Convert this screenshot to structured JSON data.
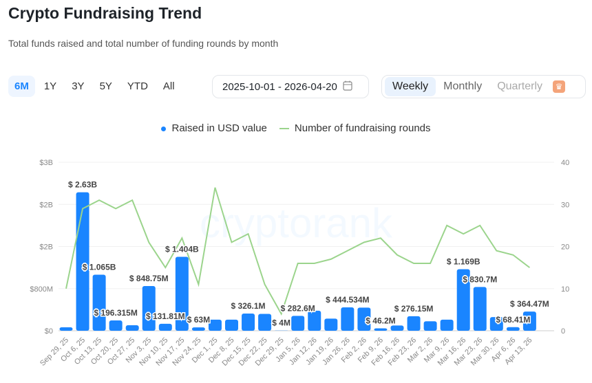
{
  "header": {
    "title": "Crypto Fundraising Trend",
    "subtitle": "Total funds raised and total number of funding rounds by month"
  },
  "ranges": [
    "6M",
    "1Y",
    "3Y",
    "5Y",
    "YTD",
    "All"
  ],
  "active_range": "6M",
  "date_range": "2025-10-01 - 2026-04-20",
  "periods": [
    "Weekly",
    "Monthly",
    "Quarterly"
  ],
  "active_period": "Weekly",
  "watermark": "cryptorank",
  "colors": {
    "bar": "#1a85ff",
    "line": "#9bd48c",
    "accent": "#1a85ff"
  },
  "chart_data": {
    "type": "bar+line",
    "legend": [
      "Raised in USD value",
      "Number of fundraising rounds"
    ],
    "legend_position": "top",
    "categories": [
      "Sep 29, 25",
      "Oct 6, 25",
      "Oct 13, 25",
      "Oct 20, 25",
      "Oct 27, 25",
      "Nov 3, 25",
      "Nov 10, 25",
      "Nov 17, 25",
      "Nov 24, 25",
      "Dec 1, 25",
      "Dec 8, 25",
      "Dec 15, 25",
      "Dec 22, 25",
      "Dec 29, 25",
      "Jan 5, 26",
      "Jan 12, 26",
      "Jan 19, 26",
      "Jan 26, 26",
      "Feb 2, 26",
      "Feb 9, 26",
      "Feb 16, 26",
      "Feb 23, 26",
      "Mar 2, 26",
      "Mar 9, 26",
      "Mar 16, 26",
      "Mar 23, 26",
      "Mar 30, 26",
      "Apr 6, 26",
      "Apr 13, 26"
    ],
    "series": [
      {
        "name": "Raised in USD value",
        "axis": "left",
        "type": "bar",
        "values": [
          65000000,
          2630000000,
          1065000000,
          196315000,
          105000000,
          848750000,
          131810000,
          1404000000,
          63000000,
          210000000,
          210000000,
          326100000,
          320000000,
          4000000,
          282600000,
          380000000,
          230000000,
          444534000,
          440000000,
          46200000,
          100000000,
          276150000,
          180000000,
          210000000,
          1169000000,
          830700000,
          260000000,
          68410000,
          364470000
        ],
        "labels": [
          null,
          "$ 2.63B",
          "$ 1.065B",
          "$ 196.315M",
          null,
          "$ 848.75M",
          "$ 131.81M",
          "$ 1.404B",
          "$ 63M",
          null,
          null,
          "$ 326.1M",
          null,
          "$ 4M",
          "$ 282.6M",
          null,
          null,
          "$ 444.534M",
          null,
          "$ 46.2M",
          null,
          "$ 276.15M",
          null,
          null,
          "$ 1.169B",
          "$ 830.7M",
          null,
          "$ 68.41M",
          "$ 364.47M"
        ]
      },
      {
        "name": "Number of fundraising rounds",
        "axis": "right",
        "type": "line",
        "values": [
          10,
          29,
          31,
          29,
          31,
          21,
          15,
          22,
          11,
          34,
          21,
          23,
          11,
          4,
          16,
          16,
          17,
          19,
          21,
          22,
          18,
          16,
          16,
          25,
          23,
          25,
          19,
          18,
          15
        ]
      }
    ],
    "left_axis": {
      "ylim": [
        0,
        3200000000
      ],
      "ticks": [
        "$0",
        "$800M",
        "$2B",
        "$2B",
        "$3B"
      ]
    },
    "right_axis": {
      "ylim": [
        0,
        40
      ],
      "ticks": [
        "0",
        "10",
        "20",
        "30",
        "40"
      ]
    },
    "grid": true
  }
}
